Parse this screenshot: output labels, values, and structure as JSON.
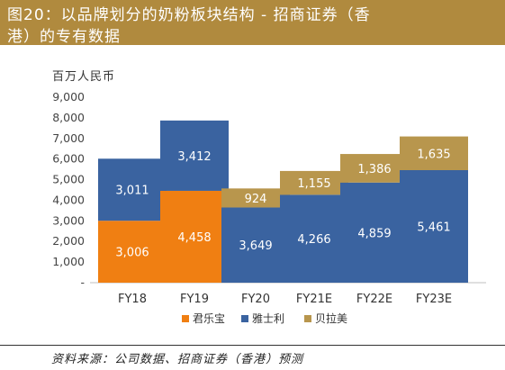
{
  "header": {
    "title_line1": "图20：以品牌划分的奶粉板块结构 - 招商证券（香",
    "title_line2": "港）的专有数据"
  },
  "unit_label": "百万人民币",
  "source": "资料来源：公司数据、招商证券（香港）预测",
  "colors": {
    "header_bg": "#b08a3e",
    "series": [
      "#f07f12",
      "#3a63a0",
      "#b8964d"
    ]
  },
  "chart_data": {
    "type": "bar",
    "stacked": true,
    "categories": [
      "FY18",
      "FY19",
      "FY20",
      "FY21E",
      "FY22E",
      "FY23E"
    ],
    "series": [
      {
        "name": "君乐宝",
        "color": "#f07f12",
        "values": [
          3006,
          4458,
          0,
          0,
          0,
          0
        ]
      },
      {
        "name": "雅士利",
        "color": "#3a63a0",
        "values": [
          3011,
          3412,
          3649,
          4266,
          4859,
          5461
        ]
      },
      {
        "name": "贝拉美",
        "color": "#b8964d",
        "values": [
          0,
          0,
          924,
          1155,
          1386,
          1635
        ]
      }
    ],
    "ylim": [
      0,
      9000
    ],
    "yticks": [
      0,
      1000,
      2000,
      3000,
      4000,
      5000,
      6000,
      7000,
      8000,
      9000
    ],
    "ytick_labels": [
      "-",
      "1,000",
      "2,000",
      "3,000",
      "4,000",
      "5,000",
      "6,000",
      "7,000",
      "8,000",
      "9,000"
    ],
    "grid": false,
    "legend_position": "bottom"
  }
}
